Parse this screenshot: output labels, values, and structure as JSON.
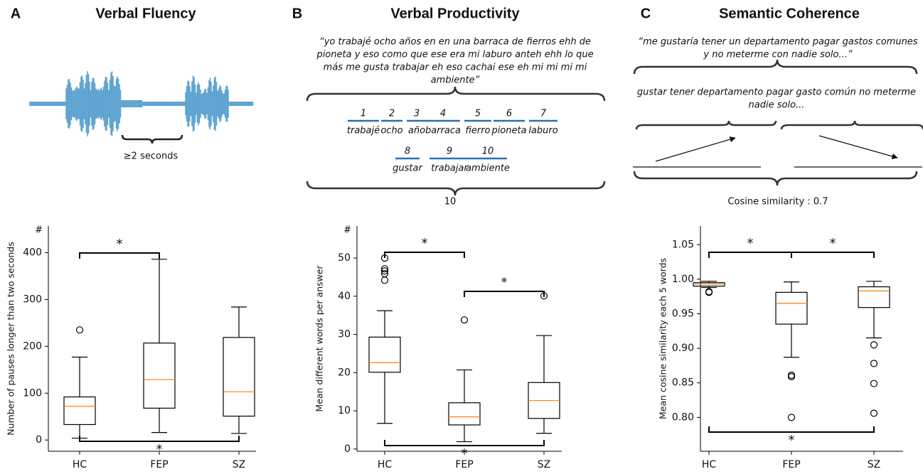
{
  "chart_data": [
    {
      "type": "box",
      "panel_label": "A",
      "title": "Verbal Fluency",
      "ylabel": "Number of pauses longer than two seconds",
      "y_unit": "#",
      "categories": [
        "HC",
        "FEP",
        "SZ"
      ],
      "boxes": [
        {
          "whislo": 4,
          "q1": 33,
          "med": 72,
          "q3": 92,
          "whishi": 177,
          "fliers": [
            235
          ]
        },
        {
          "whislo": 16,
          "q1": 68,
          "med": 129,
          "q3": 207,
          "whishi": 386,
          "fliers": []
        },
        {
          "whislo": 14,
          "q1": 51,
          "med": 103,
          "q3": 219,
          "whishi": 284,
          "fliers": []
        }
      ],
      "ylim": [
        -24,
        457
      ],
      "yticks": [
        0,
        100,
        200,
        300,
        400
      ],
      "box_color": "#000000",
      "median_color": "#ff7f0e",
      "comparisons": [
        {
          "between": [
            "HC",
            "FEP"
          ],
          "position": "top",
          "label": "*"
        },
        {
          "between": [
            "HC",
            "SZ"
          ],
          "position": "bottom",
          "label": "*"
        }
      ]
    },
    {
      "type": "box",
      "panel_label": "B",
      "title": "Verbal Productivity",
      "ylabel": "Mean different words per answer",
      "y_unit": "#",
      "categories": [
        "HC",
        "FEP",
        "SZ"
      ],
      "boxes": [
        {
          "whislo": 6.7,
          "q1": 20.1,
          "med": 22.6,
          "q3": 29.3,
          "whishi": 36.2,
          "fliers": [
            44.2,
            45.9,
            46.6,
            47.2,
            50
          ]
        },
        {
          "whislo": 1.9,
          "q1": 6.3,
          "med": 8.4,
          "q3": 12.1,
          "whishi": 20.7,
          "fliers": [
            33.8
          ]
        },
        {
          "whislo": 4.1,
          "q1": 8.0,
          "med": 12.7,
          "q3": 17.4,
          "whishi": 29.7,
          "fliers": [
            40.1
          ]
        }
      ],
      "ylim": [
        -0.6,
        58.4
      ],
      "yticks": [
        0,
        10,
        20,
        30,
        40,
        50
      ],
      "box_color": "#000000",
      "median_color": "#ff7f0e",
      "comparisons": [
        {
          "between": [
            "HC",
            "FEP"
          ],
          "position": "top",
          "label": "*"
        },
        {
          "between": [
            "FEP",
            "SZ"
          ],
          "position": "top",
          "label": "*"
        },
        {
          "between": [
            "HC",
            "SZ"
          ],
          "position": "bottom",
          "label": "*"
        }
      ]
    },
    {
      "type": "box",
      "panel_label": "C",
      "title": "Semantic Coherence",
      "ylabel": "Mean cosine similarity each 5 words",
      "categories": [
        "HC",
        "FEP",
        "SZ"
      ],
      "boxes": [
        {
          "whislo": 0.988,
          "q1": 0.99,
          "med": 0.993,
          "q3": 0.995,
          "whishi": 0.997,
          "fliers": [
            0.982,
            0.981
          ]
        },
        {
          "whislo": 0.887,
          "q1": 0.935,
          "med": 0.965,
          "q3": 0.981,
          "whishi": 0.996,
          "fliers": [
            0.861,
            0.859,
            0.8
          ]
        },
        {
          "whislo": 0.915,
          "q1": 0.959,
          "med": 0.983,
          "q3": 0.989,
          "whishi": 0.997,
          "fliers": [
            0.905,
            0.878,
            0.849,
            0.806
          ]
        }
      ],
      "ylim": [
        0.751,
        1.077
      ],
      "yticks": [
        {
          "value": 0.8,
          "label": "0.80"
        },
        0.85,
        {
          "value": 0.9,
          "label": "0.90"
        },
        0.95,
        {
          "value": 1.0,
          "label": "1.00"
        },
        1.05
      ],
      "box_color": "#000000",
      "median_color": "#ff7f0e",
      "comparisons": [
        {
          "between": [
            "HC",
            "FEP"
          ],
          "position": "top",
          "label": "*"
        },
        {
          "between": [
            "FEP",
            "SZ"
          ],
          "position": "top",
          "label": "*"
        },
        {
          "between": [
            "HC",
            "SZ"
          ],
          "position": "bottom",
          "label": "*"
        }
      ]
    }
  ],
  "illustrations": {
    "fluency": {
      "pause_label": "≥2 seconds"
    },
    "productivity": {
      "quote": [
        "“yo trabajé ocho años en en una barraca de fierros ehh de",
        "pioneta y eso como que  ese era mi laburo anteh  ehh lo que",
        "más me gusta trabajar eh eso cachai ese eh mi mi mi mi",
        "ambiente”"
      ],
      "words_row1": [
        {
          "n": 1,
          "word": "trabajé"
        },
        {
          "n": 2,
          "word": "ocho"
        },
        {
          "n": 3,
          "word": "año"
        },
        {
          "n": 4,
          "word": "barraca"
        },
        {
          "n": 5,
          "word": "fierro"
        },
        {
          "n": 6,
          "word": "pioneta"
        },
        {
          "n": 7,
          "word": "laburo"
        }
      ],
      "words_row2": [
        {
          "n": 8,
          "word": "gustar"
        },
        {
          "n": 9,
          "word": "trabajar"
        },
        {
          "n": 10,
          "word": "ambiente"
        }
      ],
      "total": 10
    },
    "coherence": {
      "quote": [
        "“me gustaría tener un departamento pagar gastos comunes",
        "y no meterme con nadie solo...”"
      ],
      "lemmas": [
        "gustar tener departamento pagar gasto común no meterme",
        "nadie solo..."
      ],
      "result": "Cosine similarity : 0.7"
    }
  }
}
